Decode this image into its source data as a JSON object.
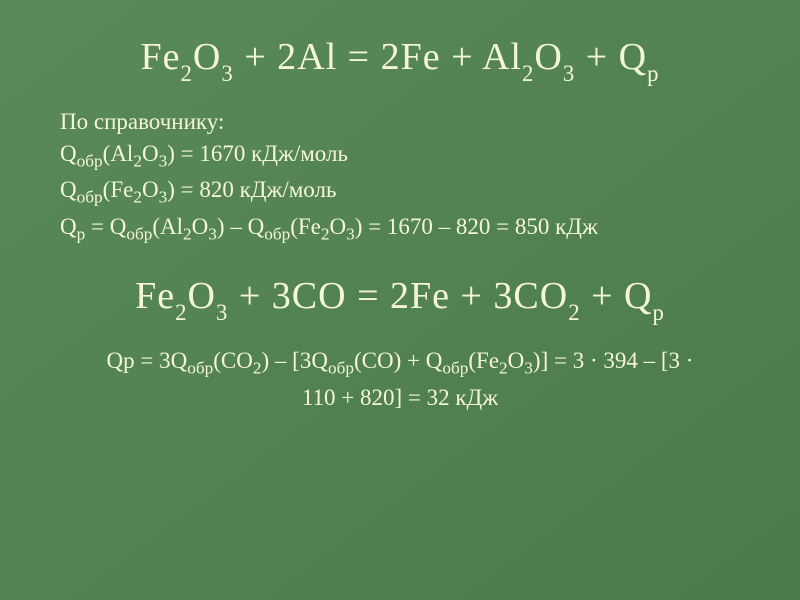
{
  "equation1": {
    "full_text": "Fe₂O₃ + 2Al = 2Fe + Al₂O₃ + Qₚ"
  },
  "reference_label": "По справочнику:",
  "line1": {
    "prefix": "Q",
    "sub": "обр",
    "compound": "(Al",
    "sub2": "2",
    "mid": "O",
    "sub3": "3",
    "suffix": ") = 1670 кДж/моль"
  },
  "line2": {
    "prefix": "Q",
    "sub": "обр",
    "compound": "(Fe",
    "sub2": "2",
    "mid": "O",
    "sub3": "3",
    "suffix": ") = 820 кДж/моль"
  },
  "line3_part1": "Q",
  "line3_sub1": "р",
  "line3_part2": " = Q",
  "line3_sub2": "обр",
  "line3_part3": "(Al",
  "line3_sub3": "2",
  "line3_part4": "O",
  "line3_sub4": "3",
  "line3_part5": ") – Q",
  "line3_sub5": "обр",
  "line3_part6": "(Fe",
  "line3_sub6": "2",
  "line3_part7": "O",
  "line3_sub7": "3",
  "line3_part8": ") = 1670 – 820 = 850 кДж",
  "equation2": {
    "full_text": "Fe₂O₃ + 3CO = 2Fe + 3CO₂ + Qₚ"
  },
  "qp_line1": "Qp = 3Q",
  "qp_sub1": "обр",
  "qp_line2": "(CO",
  "qp_sub2": "2",
  "qp_line3": ") – [3Q",
  "qp_sub3": "обр",
  "qp_line4": "(CO) + Q",
  "qp_sub4": "обр",
  "qp_line5": "(Fe",
  "qp_sub5": "2",
  "qp_line6": "O",
  "qp_sub6": "3",
  "qp_line7": ")] = 3 · 394 – [3 ·",
  "qp_line8": "110 + 820] = 32 кДж",
  "colors": {
    "background_start": "#5a8a5a",
    "background_end": "#4a7a4a",
    "text": "#f5f5dc"
  }
}
